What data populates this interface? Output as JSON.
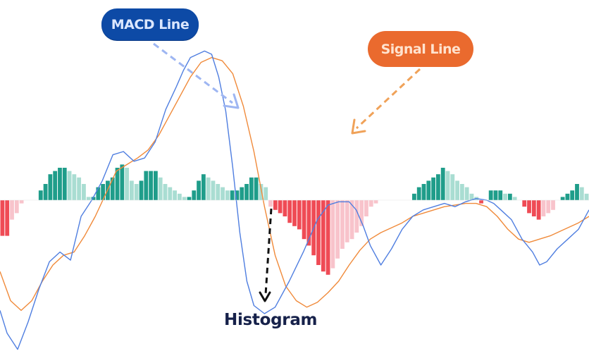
{
  "chart_data": {
    "type": "line",
    "title": "",
    "xlabel": "",
    "ylabel": "",
    "ylim": [
      -100,
      100
    ],
    "zero_line": 0,
    "colors": {
      "macd": "#4f7ee0",
      "signal": "#f08a3a",
      "hist_pos_strong": "#1f9d8a",
      "hist_pos_weak": "#a9ddd2",
      "hist_neg_strong": "#ef4b55",
      "hist_neg_weak": "#f8c3cb"
    },
    "series": [
      {
        "key": "macd",
        "x": [
          0,
          2,
          5,
          8,
          11,
          14,
          17,
          20,
          23,
          26,
          29,
          32,
          35,
          38,
          41,
          44,
          47,
          50,
          52,
          54,
          56,
          58,
          60,
          62,
          64,
          66,
          68,
          70,
          72,
          75,
          78,
          82,
          86,
          90,
          93,
          96,
          99,
          101,
          103,
          105,
          108,
          111,
          114,
          117,
          120,
          123,
          126,
          129,
          132,
          135,
          138,
          140,
          142,
          145,
          148,
          151,
          153,
          155,
          158,
          161,
          164,
          167
        ],
        "values": [
          -68,
          -82,
          -92,
          -75,
          -55,
          -38,
          -32,
          -37,
          -10,
          0,
          12,
          28,
          30,
          24,
          26,
          36,
          56,
          70,
          80,
          88,
          90,
          92,
          90,
          76,
          55,
          20,
          -20,
          -50,
          -65,
          -70,
          -66,
          -50,
          -32,
          -12,
          -3,
          -1,
          -1,
          -6,
          -16,
          -28,
          -40,
          -30,
          -18,
          -10,
          -6,
          -4,
          -2,
          -4,
          -1,
          1,
          0,
          -2,
          -6,
          -12,
          -24,
          -32,
          -40,
          -38,
          -30,
          -24,
          -18,
          -6
        ]
      },
      {
        "key": "signal",
        "x": [
          0,
          3,
          6,
          9,
          12,
          15,
          18,
          21,
          24,
          27,
          30,
          33,
          36,
          39,
          42,
          45,
          48,
          51,
          54,
          57,
          60,
          63,
          66,
          69,
          72,
          75,
          78,
          81,
          84,
          87,
          90,
          93,
          96,
          99,
          102,
          105,
          108,
          111,
          114,
          117,
          120,
          123,
          126,
          129,
          132,
          135,
          138,
          141,
          144,
          147,
          150,
          153,
          156,
          160,
          164,
          167
        ],
        "values": [
          -44,
          -62,
          -68,
          -62,
          -50,
          -40,
          -34,
          -32,
          -22,
          -10,
          4,
          18,
          22,
          26,
          31,
          40,
          52,
          64,
          76,
          85,
          88,
          86,
          78,
          58,
          30,
          -4,
          -34,
          -53,
          -62,
          -66,
          -63,
          -57,
          -50,
          -40,
          -31,
          -24,
          -20,
          -17,
          -14,
          -10,
          -8,
          -6,
          -4,
          -3,
          -2,
          -2,
          -4,
          -10,
          -18,
          -24,
          -26,
          -24,
          -22,
          -18,
          -14,
          -10
        ]
      }
    ],
    "histogram": [
      -22,
      -22,
      -12,
      -8,
      -2,
      0,
      0,
      0,
      6,
      10,
      16,
      18,
      20,
      20,
      18,
      16,
      14,
      10,
      2,
      2,
      8,
      10,
      12,
      14,
      20,
      22,
      20,
      12,
      10,
      12,
      18,
      18,
      18,
      14,
      10,
      8,
      6,
      4,
      2,
      2,
      6,
      12,
      16,
      14,
      12,
      10,
      8,
      6,
      6,
      6,
      8,
      10,
      14,
      14,
      10,
      8,
      -4,
      -6,
      -8,
      -10,
      -14,
      -16,
      -18,
      -24,
      -28,
      -34,
      -40,
      -44,
      -46,
      -42,
      -36,
      -30,
      -26,
      -24,
      -20,
      -16,
      -10,
      -4,
      -2,
      0,
      0,
      0,
      0,
      0,
      0,
      0,
      4,
      8,
      10,
      12,
      14,
      16,
      20,
      18,
      16,
      12,
      10,
      8,
      4,
      2,
      -2,
      0,
      6,
      6,
      6,
      4,
      4,
      2,
      0,
      -4,
      -8,
      -10,
      -12,
      -10,
      -8,
      -6,
      0,
      2,
      4,
      6,
      10,
      8,
      4
    ]
  },
  "labels": {
    "macd_line": "MACD Line",
    "signal_line": "Signal Line",
    "histogram": "Histogram"
  }
}
